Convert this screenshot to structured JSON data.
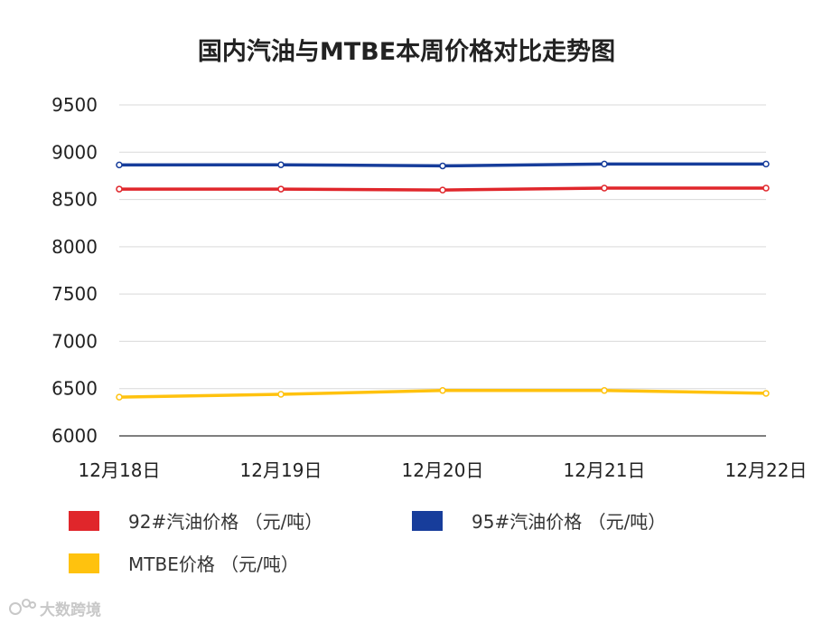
{
  "chart_data": {
    "type": "line",
    "title": "国内汽油与MTBE本周价格对比走势图",
    "xlabel": "",
    "ylabel": "",
    "categories": [
      "12月18日",
      "12月19日",
      "12月20日",
      "12月21日",
      "12月22日"
    ],
    "ylim": [
      6000,
      9500
    ],
    "yticks": [
      6000,
      6500,
      7000,
      7500,
      8000,
      8500,
      9000,
      9500
    ],
    "grid": true,
    "legend_position": "bottom",
    "series": [
      {
        "name": "92#汽油价格 （元/吨）",
        "color": "#e0262b",
        "values": [
          8610,
          8610,
          8600,
          8620,
          8620
        ]
      },
      {
        "name": "95#汽油价格 （元/吨）",
        "color": "#173d9b",
        "values": [
          8865,
          8867,
          8855,
          8875,
          8875
        ]
      },
      {
        "name": "MTBE价格 （元/吨）",
        "color": "#ffc20e",
        "values": [
          6410,
          6440,
          6480,
          6480,
          6450
        ]
      }
    ]
  },
  "watermark": {
    "text": "大数跨境",
    "color": "#c8c8c8"
  }
}
